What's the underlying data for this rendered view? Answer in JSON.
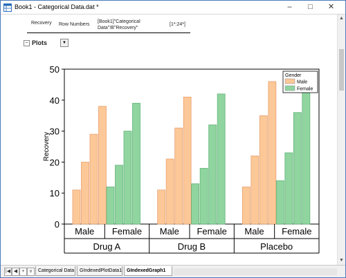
{
  "window": {
    "title": "Book1 - Categorical Data.dat *",
    "minimize_glyph": "–",
    "maximize_glyph": "□",
    "close_glyph": "✕"
  },
  "header": {
    "col1": "Recovery",
    "col2": "Row Numbers",
    "col3_line1": "[Book1]\"Categorical",
    "col3_line2": "Data\"!B\"Recovery\"",
    "col4": "[1*:24*]"
  },
  "plots": {
    "toggle_glyph": "−",
    "label": "Plots",
    "dropdown_glyph": "▼"
  },
  "chart_data": {
    "type": "bar",
    "ylabel": "Recovery",
    "ylim": [
      0,
      50
    ],
    "yticks": [
      "0",
      "10",
      "20",
      "30",
      "40",
      "50"
    ],
    "groups": [
      "Drug A",
      "Drug B",
      "Placebo"
    ],
    "subgroups": [
      "Male",
      "Female"
    ],
    "legend": {
      "title": "Gender",
      "entries": [
        "Male",
        "Female"
      ],
      "placement": "top-right"
    },
    "colors": {
      "Male": "#fcc898",
      "Female": "#90d4a0"
    },
    "series": [
      {
        "name": "Male",
        "values": [
          [
            11,
            20,
            29,
            38
          ],
          [
            11,
            21,
            31,
            41
          ],
          [
            12,
            22,
            35,
            46
          ]
        ]
      },
      {
        "name": "Female",
        "values": [
          [
            12,
            19,
            30,
            39
          ],
          [
            13,
            18,
            32,
            42
          ],
          [
            14,
            23,
            36,
            45
          ]
        ]
      }
    ]
  },
  "scroll": {
    "up_glyph": "▲",
    "down_glyph": "▼"
  },
  "nav": {
    "first": "|◀",
    "prev": "◀",
    "add": "+",
    "menu": "v"
  },
  "tabs": [
    {
      "label": "Categorical Data"
    },
    {
      "label": "GIndexedPlotData1"
    },
    {
      "label": "GIndexedGraph1"
    }
  ]
}
